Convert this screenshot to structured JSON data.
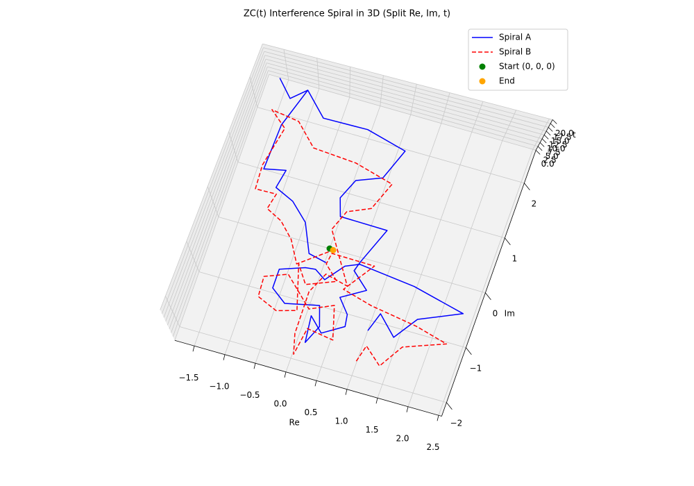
{
  "chart_data": {
    "type": "line3d",
    "title": "ZC(t) Interference Spiral in 3D (Split Re, Im, t)",
    "xlabel": "Re",
    "ylabel": "Im",
    "zlabel": "t",
    "xlim": [
      -1.82,
      2.55
    ],
    "ylim": [
      -2.25,
      2.6
    ],
    "zlim": [
      0,
      20
    ],
    "xticks": [
      {
        "value": -1.5,
        "label": "−1.5"
      },
      {
        "value": -1.0,
        "label": "−1.0"
      },
      {
        "value": -0.5,
        "label": "−0.5"
      },
      {
        "value": 0,
        "label": "0.0"
      },
      {
        "value": 0.5,
        "label": "0.5"
      },
      {
        "value": 1,
        "label": "1.0"
      },
      {
        "value": 1.5,
        "label": "1.5"
      },
      {
        "value": 2,
        "label": "2.0"
      },
      {
        "value": 2.5,
        "label": "2.5"
      }
    ],
    "yticks": [
      {
        "value": -2,
        "label": "−2"
      },
      {
        "value": -1,
        "label": "−1"
      },
      0,
      1,
      2
    ],
    "zticks": [
      {
        "value": 0,
        "label": "0.0"
      },
      2.5,
      {
        "value": 5,
        "label": "5.0"
      },
      7.5,
      {
        "value": 10,
        "label": "10.0"
      },
      12.5,
      {
        "value": 15,
        "label": "15.0"
      },
      17.5,
      {
        "value": 20,
        "label": "20.0"
      }
    ],
    "grid": true,
    "legend": "upper right",
    "series": [
      {
        "name": "Spiral A",
        "type": "line",
        "color": "blue",
        "style": "solid",
        "x": [
          1.0,
          1.1,
          1.42,
          1.68,
          2.33,
          1.46,
          0.53,
          0.32,
          0.09,
          -0.1,
          -0.26,
          -0.64,
          -0.64,
          -0.38,
          0.15,
          0.26,
          0.13,
          0.08,
          0.32,
          0.64,
          0.61,
          0.41,
          0.77,
          0.48,
          0.53,
          0.76,
          -0.01,
          -0.11,
          0.03,
          0.42,
          0.61,
          -0.06,
          -0.78,
          -1.16,
          -1.37,
          -1.4,
          -1.06,
          -1.12,
          -0.8,
          -0.5,
          -0.28,
          0.02,
          null,
          -1.64,
          -1.38,
          -1.16
        ],
        "y": [
          -1.18,
          -0.84,
          -1.17,
          -0.76,
          -0.45,
          -0.23,
          -0.12,
          -0.22,
          -0.54,
          -0.41,
          -0.43,
          -0.58,
          -0.92,
          -1.12,
          -0.99,
          -1.34,
          -1.67,
          -1.2,
          -1.44,
          -1.22,
          -1.01,
          -0.76,
          -0.52,
          -0.25,
          -0.07,
          0.57,
          0.58,
          0.89,
          1.25,
          1.42,
          1.97,
          2.15,
          2.13,
          2.52,
          1.82,
          1.01,
          1.09,
          0.76,
          0.61,
          0.32,
          -0.18,
          -0.25,
          null,
          2.59,
          2.3,
          2.52
        ]
      },
      {
        "name": "Spiral B",
        "type": "line",
        "color": "red",
        "style": "dashed",
        "x": [
          0.99,
          1.06,
          1.36,
          1.6,
          2.24,
          1.7,
          0.92,
          0.42,
          0.76,
          0.06,
          0.03,
          0.28,
          -0.17,
          -0.38,
          -0.16,
          -0.47,
          -0.81,
          -0.83,
          -0.48,
          0.01,
          0.37,
          0.53,
          0.09,
          0.02,
          -0.07,
          -0.08,
          0.08,
          0.46,
          -0.07,
          0.06,
          0.41,
          0.59,
          -0.06,
          -0.77,
          -1.13,
          -1.59,
          -1.3,
          -1.44,
          -1.42,
          -1.08,
          -1.14,
          -0.87,
          -0.62,
          -0.41,
          0.06
        ],
        "y": [
          -1.74,
          -1.44,
          -1.71,
          -1.29,
          -1.03,
          -0.88,
          -0.75,
          -0.61,
          -0.08,
          -0.07,
          -0.27,
          -0.51,
          -0.71,
          -0.4,
          -1.18,
          -1.28,
          -1.13,
          -0.77,
          -0.62,
          -1.1,
          -0.92,
          -1.5,
          -1.43,
          -1.92,
          -1.57,
          -0.81,
          -0.44,
          -0.54,
          0.33,
          0.69,
          0.86,
          1.36,
          1.54,
          1.59,
          1.96,
          2.03,
          1.78,
          1.07,
          0.64,
          0.65,
          0.37,
          0.23,
          -0.03,
          -0.41,
          -0.01
        ]
      },
      {
        "name": "Start (0, 0, 0)",
        "type": "scatter",
        "color": "green",
        "x": [
          0
        ],
        "y": [
          0
        ]
      },
      {
        "name": "End",
        "type": "scatter",
        "color": "orange",
        "x": [
          0.06
        ],
        "y": [
          -0.01
        ]
      }
    ]
  }
}
